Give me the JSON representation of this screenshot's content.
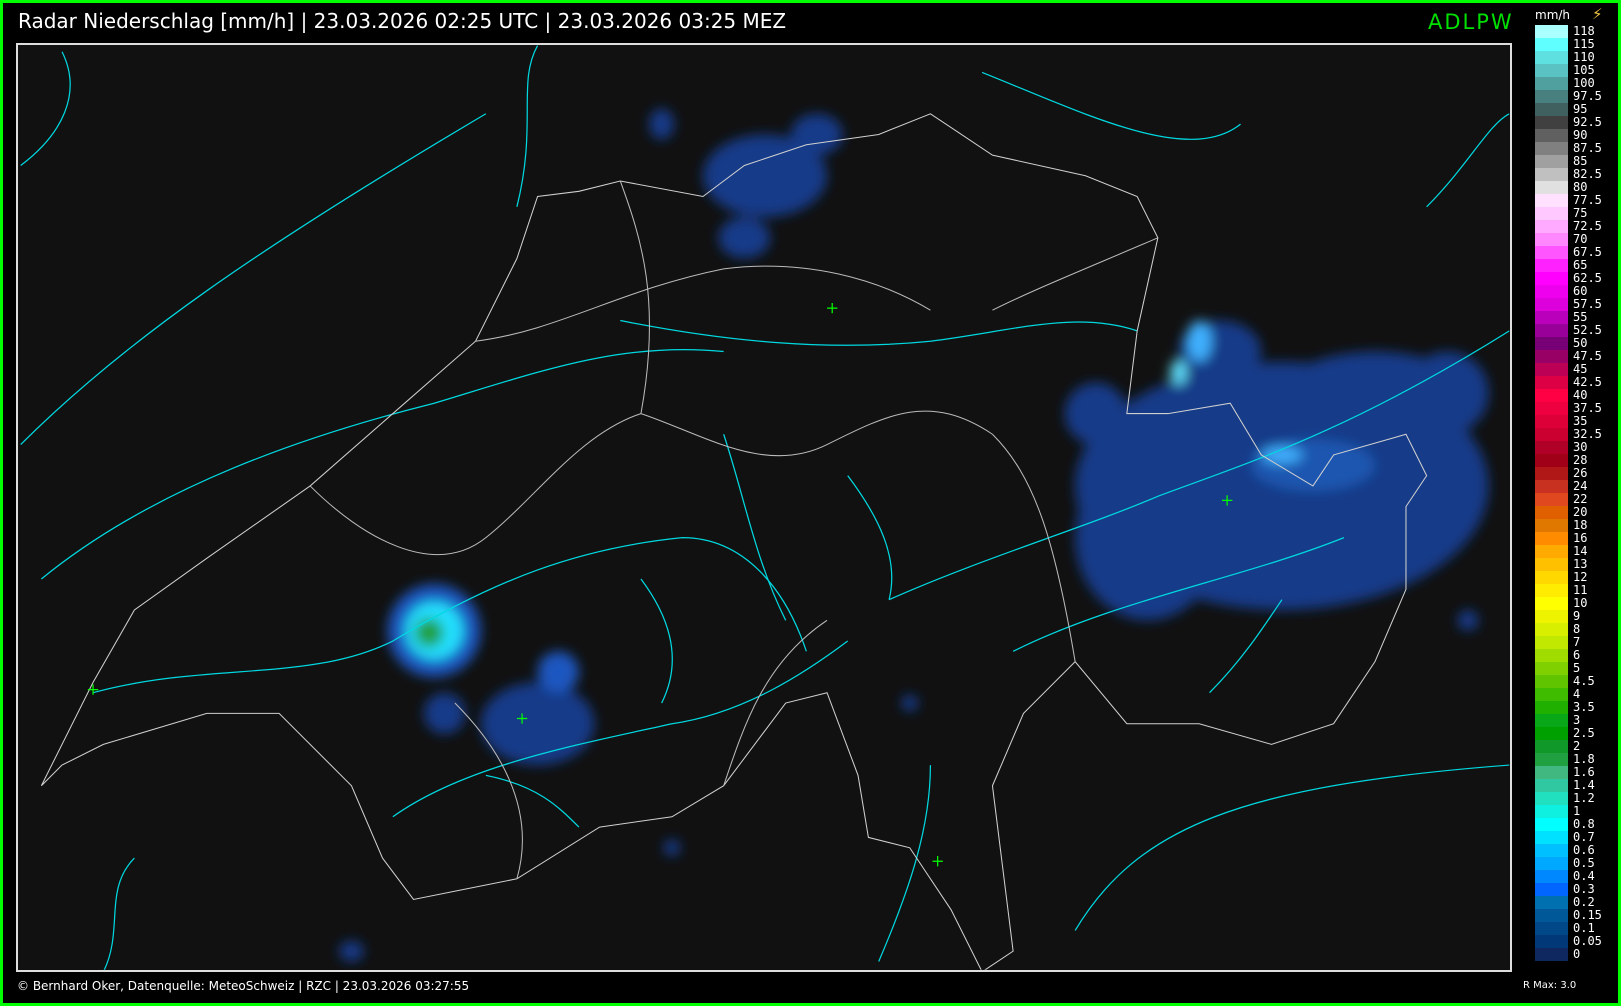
{
  "header": {
    "title": "Radar Niederschlag [mm/h] | 23.03.2026 02:25 UTC | 23.03.2026 03:25 MEZ",
    "brand": "ADLPW"
  },
  "footer": {
    "credit": "© Bernhard Oker, Datenquelle: MeteoSchweiz | RZC | 23.03.2026 03:27:55",
    "rmax": "R Max: 3.0"
  },
  "legend": {
    "unit": "mm/h",
    "icon": "lightning-icon",
    "items": [
      {
        "label": "118",
        "color": "#aaffff"
      },
      {
        "label": "115",
        "color": "#5fffff"
      },
      {
        "label": "110",
        "color": "#5ee0e0"
      },
      {
        "label": "105",
        "color": "#5ac2c2"
      },
      {
        "label": "100",
        "color": "#50a0a0"
      },
      {
        "label": "97.5",
        "color": "#488080"
      },
      {
        "label": "95",
        "color": "#406060"
      },
      {
        "label": "92.5",
        "color": "#404040"
      },
      {
        "label": "90",
        "color": "#606060"
      },
      {
        "label": "87.5",
        "color": "#808080"
      },
      {
        "label": "85",
        "color": "#a0a0a0"
      },
      {
        "label": "82.5",
        "color": "#c0c0c0"
      },
      {
        "label": "80",
        "color": "#e0e0e0"
      },
      {
        "label": "77.5",
        "color": "#ffe0ff"
      },
      {
        "label": "75",
        "color": "#ffc8ff"
      },
      {
        "label": "72.5",
        "color": "#ffaaff"
      },
      {
        "label": "70",
        "color": "#ff88ff"
      },
      {
        "label": "67.5",
        "color": "#ff55ff"
      },
      {
        "label": "65",
        "color": "#ff22ff"
      },
      {
        "label": "62.5",
        "color": "#ff00ff"
      },
      {
        "label": "60",
        "color": "#ee00ee"
      },
      {
        "label": "57.5",
        "color": "#dd00dd"
      },
      {
        "label": "55",
        "color": "#bb00bb"
      },
      {
        "label": "52.5",
        "color": "#990099"
      },
      {
        "label": "50",
        "color": "#770077"
      },
      {
        "label": "47.5",
        "color": "#990066"
      },
      {
        "label": "45",
        "color": "#bb0055"
      },
      {
        "label": "42.5",
        "color": "#dd0044"
      },
      {
        "label": "40",
        "color": "#ff0044"
      },
      {
        "label": "37.5",
        "color": "#ee0040"
      },
      {
        "label": "35",
        "color": "#dd0038"
      },
      {
        "label": "32.5",
        "color": "#cc0030"
      },
      {
        "label": "30",
        "color": "#b00028"
      },
      {
        "label": "28",
        "color": "#a00018"
      },
      {
        "label": "26",
        "color": "#b01818"
      },
      {
        "label": "24",
        "color": "#c83020"
      },
      {
        "label": "22",
        "color": "#e04820"
      },
      {
        "label": "20",
        "color": "#e06000"
      },
      {
        "label": "18",
        "color": "#e07800"
      },
      {
        "label": "16",
        "color": "#ff8c00"
      },
      {
        "label": "14",
        "color": "#ffaa00"
      },
      {
        "label": "13",
        "color": "#ffc000"
      },
      {
        "label": "12",
        "color": "#ffd800"
      },
      {
        "label": "11",
        "color": "#ffec00"
      },
      {
        "label": "10",
        "color": "#ffff00"
      },
      {
        "label": "9",
        "color": "#eef400"
      },
      {
        "label": "8",
        "color": "#d8f000"
      },
      {
        "label": "7",
        "color": "#c0e800"
      },
      {
        "label": "6",
        "color": "#a0dc00"
      },
      {
        "label": "5",
        "color": "#80d000"
      },
      {
        "label": "4.5",
        "color": "#60c400"
      },
      {
        "label": "4",
        "color": "#40bc00"
      },
      {
        "label": "3.5",
        "color": "#20b000"
      },
      {
        "label": "3",
        "color": "#08a818"
      },
      {
        "label": "2.5",
        "color": "#00a000"
      },
      {
        "label": "2",
        "color": "#109828"
      },
      {
        "label": "1.8",
        "color": "#20a040"
      },
      {
        "label": "1.6",
        "color": "#40b880"
      },
      {
        "label": "1.4",
        "color": "#30c8a0"
      },
      {
        "label": "1.2",
        "color": "#20e0c0"
      },
      {
        "label": "1",
        "color": "#10f0e0"
      },
      {
        "label": "0.8",
        "color": "#00ffff"
      },
      {
        "label": "0.7",
        "color": "#00e0ff"
      },
      {
        "label": "0.6",
        "color": "#00c0ff"
      },
      {
        "label": "0.5",
        "color": "#00a8ff"
      },
      {
        "label": "0.4",
        "color": "#0088ff"
      },
      {
        "label": "0.3",
        "color": "#0066ff"
      },
      {
        "label": "0.2",
        "color": "#0070b0"
      },
      {
        "label": "0.15",
        "color": "#005898"
      },
      {
        "label": "0.1",
        "color": "#004888"
      },
      {
        "label": "0.05",
        "color": "#003878"
      },
      {
        "label": "0",
        "color": "#102860"
      }
    ]
  },
  "map": {
    "river_color": "#00d8e0",
    "border_color": "#d0d0d0",
    "station_marker_color": "#00ff00",
    "background": "#111111"
  }
}
